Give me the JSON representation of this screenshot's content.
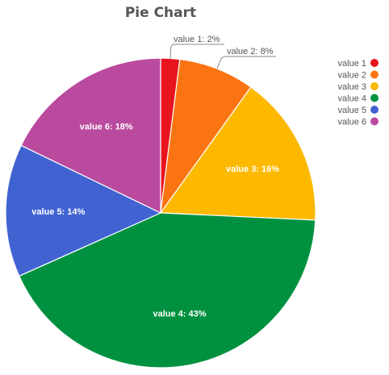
{
  "chart_data": {
    "type": "pie",
    "title": "Pie Chart",
    "legend_position": "top-right",
    "slices": [
      {
        "name": "value 1",
        "value": 2,
        "label": "value 1: 2%",
        "color": "#e8141e",
        "label_style": "callout"
      },
      {
        "name": "value 2",
        "value": 8,
        "label": "value 2: 8%",
        "color": "#fb7412",
        "label_style": "callout"
      },
      {
        "name": "value 3",
        "value": 16,
        "label": "value 3: 16%",
        "color": "#fdb900",
        "label_style": "inside"
      },
      {
        "name": "value 4",
        "value": 43,
        "label": "value 4: 43%",
        "color": "#009140",
        "label_style": "inside"
      },
      {
        "name": "value 5",
        "value": 14,
        "label": "value 5: 14%",
        "color": "#4163d1",
        "label_style": "inside"
      },
      {
        "name": "value 6",
        "value": 18,
        "label": "value 6: 18%",
        "color": "#ba4a9e",
        "label_style": "inside"
      }
    ]
  }
}
